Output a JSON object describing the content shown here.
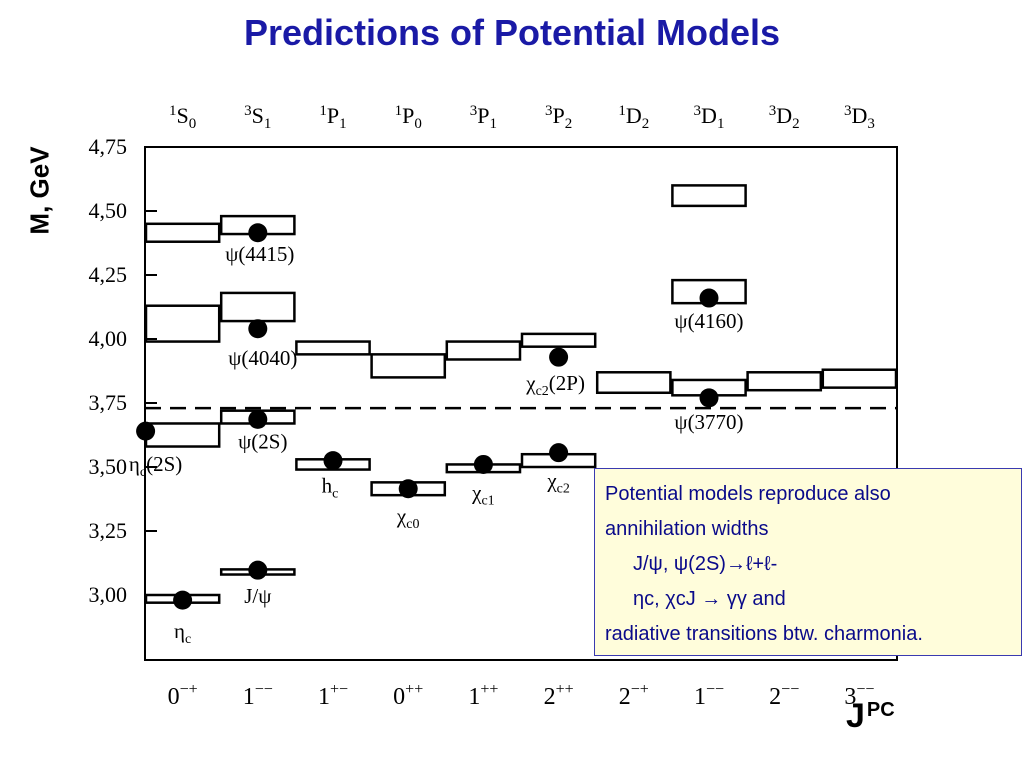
{
  "title": "Predictions of Potential Models",
  "chart_data": {
    "type": "level-diagram",
    "ylabel": "M, GeV",
    "xlabel": "J",
    "xlabel_sup": "PC",
    "ylim": [
      2.8,
      4.75
    ],
    "yticks": [
      "3,00",
      "3,25",
      "3,50",
      "3,75",
      "4,00",
      "4,25",
      "4,50",
      "4,75"
    ],
    "ytick_values": [
      3.0,
      3.25,
      3.5,
      3.75,
      4.0,
      4.25,
      4.5,
      4.75
    ],
    "columns": [
      {
        "top": "1S0",
        "bottom": "0−+"
      },
      {
        "top": "3S1",
        "bottom": "1−−"
      },
      {
        "top": "1P1",
        "bottom": "1+−"
      },
      {
        "top": "1P0",
        "bottom": "0++"
      },
      {
        "top": "3P1",
        "bottom": "1++"
      },
      {
        "top": "3P2",
        "bottom": "2++"
      },
      {
        "top": "1D2",
        "bottom": "2−+"
      },
      {
        "top": "3D1",
        "bottom": "1−−"
      },
      {
        "top": "3D2",
        "bottom": "2−−"
      },
      {
        "top": "3D3",
        "bottom": "3−−"
      }
    ],
    "threshold": 3.73,
    "predictions": [
      {
        "col": 0,
        "lo": 2.97,
        "hi": 3.0
      },
      {
        "col": 0,
        "lo": 3.58,
        "hi": 3.67
      },
      {
        "col": 0,
        "lo": 3.99,
        "hi": 4.13
      },
      {
        "col": 0,
        "lo": 4.38,
        "hi": 4.45
      },
      {
        "col": 1,
        "lo": 3.08,
        "hi": 3.1
      },
      {
        "col": 1,
        "lo": 3.67,
        "hi": 3.72
      },
      {
        "col": 1,
        "lo": 4.07,
        "hi": 4.18
      },
      {
        "col": 1,
        "lo": 4.41,
        "hi": 4.48
      },
      {
        "col": 2,
        "lo": 3.49,
        "hi": 3.53
      },
      {
        "col": 2,
        "lo": 3.94,
        "hi": 3.99
      },
      {
        "col": 3,
        "lo": 3.39,
        "hi": 3.44
      },
      {
        "col": 3,
        "lo": 3.85,
        "hi": 3.94
      },
      {
        "col": 4,
        "lo": 3.48,
        "hi": 3.51
      },
      {
        "col": 4,
        "lo": 3.92,
        "hi": 3.99
      },
      {
        "col": 5,
        "lo": 3.5,
        "hi": 3.55
      },
      {
        "col": 5,
        "lo": 3.97,
        "hi": 4.02
      },
      {
        "col": 6,
        "lo": 3.79,
        "hi": 3.87
      },
      {
        "col": 7,
        "lo": 3.78,
        "hi": 3.84
      },
      {
        "col": 7,
        "lo": 4.14,
        "hi": 4.23
      },
      {
        "col": 7,
        "lo": 4.52,
        "hi": 4.6
      },
      {
        "col": 8,
        "lo": 3.8,
        "hi": 3.87
      },
      {
        "col": 9,
        "lo": 3.81,
        "hi": 3.88
      }
    ],
    "states": [
      {
        "col": 0,
        "mass": 2.98,
        "label": "ηc"
      },
      {
        "col": 0,
        "mass": 3.64,
        "label": "ηc(2S)"
      },
      {
        "col": 1,
        "mass": 3.097,
        "label": "J/ψ"
      },
      {
        "col": 1,
        "mass": 3.686,
        "label": "ψ(2S)"
      },
      {
        "col": 1,
        "mass": 4.04,
        "label": "ψ(4040)"
      },
      {
        "col": 1,
        "mass": 4.415,
        "label": "ψ(4415)"
      },
      {
        "col": 2,
        "mass": 3.525,
        "label": "hc"
      },
      {
        "col": 3,
        "mass": 3.415,
        "label": "χc0"
      },
      {
        "col": 4,
        "mass": 3.51,
        "label": "χc1"
      },
      {
        "col": 5,
        "mass": 3.556,
        "label": "χc2"
      },
      {
        "col": 5,
        "mass": 3.929,
        "label": "χc2(2P)"
      },
      {
        "col": 7,
        "mass": 3.77,
        "label": "ψ(3770)"
      },
      {
        "col": 7,
        "mass": 4.16,
        "label": "ψ(4160)"
      }
    ]
  },
  "note": {
    "line1": "Potential models reproduce also",
    "line2": "annihilation widths",
    "line3": "J/ψ, ψ(2S)→ℓ+ℓ-",
    "line4": "ηc, χcJ → γγ  and",
    "line5": "radiative transitions btw. charmonia."
  }
}
